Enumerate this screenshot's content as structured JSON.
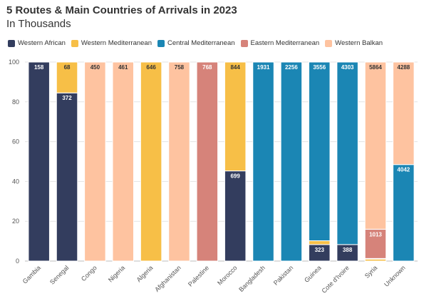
{
  "chart_data": {
    "type": "bar",
    "stacked": true,
    "title": "5 Routes & Main Countries of Arrivals in 2023",
    "subtitle": "In Thousands",
    "ylim": [
      0,
      100
    ],
    "yticks": [
      0,
      20,
      40,
      60,
      80,
      100
    ],
    "grid": true,
    "legend_position": "top-left",
    "legend": [
      {
        "name": "Western African",
        "color": "#333d5e"
      },
      {
        "name": "Western Mediterranean",
        "color": "#f7bf47"
      },
      {
        "name": "Central Mediterranean",
        "color": "#1b86b4"
      },
      {
        "name": "Eastern Mediterranean",
        "color": "#d6837a"
      },
      {
        "name": "Western Balkan",
        "color": "#fec3a0"
      }
    ],
    "categories": [
      "Gambia",
      "Senegal",
      "Congo",
      "Nigeria",
      "Algeria",
      "Afghanistan",
      "Palestine",
      "Morocco",
      "Bangladesh",
      "Pakistan",
      "Guinea",
      "Cote d'Ivoire",
      "Syria",
      "Unknown"
    ],
    "bars": [
      {
        "category": "Gambia",
        "segments": [
          {
            "route": "Western African",
            "share": 100,
            "label": "158"
          }
        ]
      },
      {
        "category": "Senegal",
        "segments": [
          {
            "route": "Western African",
            "share": 84.5,
            "label": "372"
          },
          {
            "route": "Western Mediterranean",
            "share": 15.5,
            "label": "68"
          }
        ]
      },
      {
        "category": "Congo",
        "segments": [
          {
            "route": "Western Balkan",
            "share": 100,
            "label": "450"
          }
        ]
      },
      {
        "category": "Nigeria",
        "segments": [
          {
            "route": "Western Balkan",
            "share": 100,
            "label": "461"
          }
        ]
      },
      {
        "category": "Algeria",
        "segments": [
          {
            "route": "Western Mediterranean",
            "share": 100,
            "label": "646"
          }
        ]
      },
      {
        "category": "Afghanistan",
        "segments": [
          {
            "route": "Western Balkan",
            "share": 100,
            "label": "758"
          }
        ]
      },
      {
        "category": "Palestine",
        "segments": [
          {
            "route": "Eastern Mediterranean",
            "share": 100,
            "label": "768"
          }
        ]
      },
      {
        "category": "Morocco",
        "segments": [
          {
            "route": "Western African",
            "share": 45.3,
            "label": "699"
          },
          {
            "route": "Western Mediterranean",
            "share": 54.7,
            "label": "844"
          }
        ]
      },
      {
        "category": "Bangladesh",
        "segments": [
          {
            "route": "Central Mediterranean",
            "share": 100,
            "label": "1931"
          }
        ]
      },
      {
        "category": "Pakistan",
        "segments": [
          {
            "route": "Central Mediterranean",
            "share": 100,
            "label": "2256"
          }
        ]
      },
      {
        "category": "Guinea",
        "segments": [
          {
            "route": "Western African",
            "share": 8.3,
            "label": "323"
          },
          {
            "route": "Western Mediterranean",
            "share": 1.9,
            "label": ""
          },
          {
            "route": "Central Mediterranean",
            "share": 89.8,
            "label": "3556"
          }
        ]
      },
      {
        "category": "Cote d'Ivoire",
        "segments": [
          {
            "route": "Western African",
            "share": 8.3,
            "label": "388"
          },
          {
            "route": "Central Mediterranean",
            "share": 91.7,
            "label": "4303"
          }
        ]
      },
      {
        "category": "Syria",
        "segments": [
          {
            "route": "Western Mediterranean",
            "share": 1.0,
            "label": ""
          },
          {
            "route": "Central Mediterranean",
            "share": 0.3,
            "label": ""
          },
          {
            "route": "Eastern Mediterranean",
            "share": 14.7,
            "label": "1013"
          },
          {
            "route": "Western Balkan",
            "share": 84.0,
            "label": "5864"
          }
        ]
      },
      {
        "category": "Unknown",
        "segments": [
          {
            "route": "Central Mediterranean",
            "share": 48.5,
            "label": "4042"
          },
          {
            "route": "Western Balkan",
            "share": 51.5,
            "label": "4288"
          }
        ]
      }
    ]
  }
}
